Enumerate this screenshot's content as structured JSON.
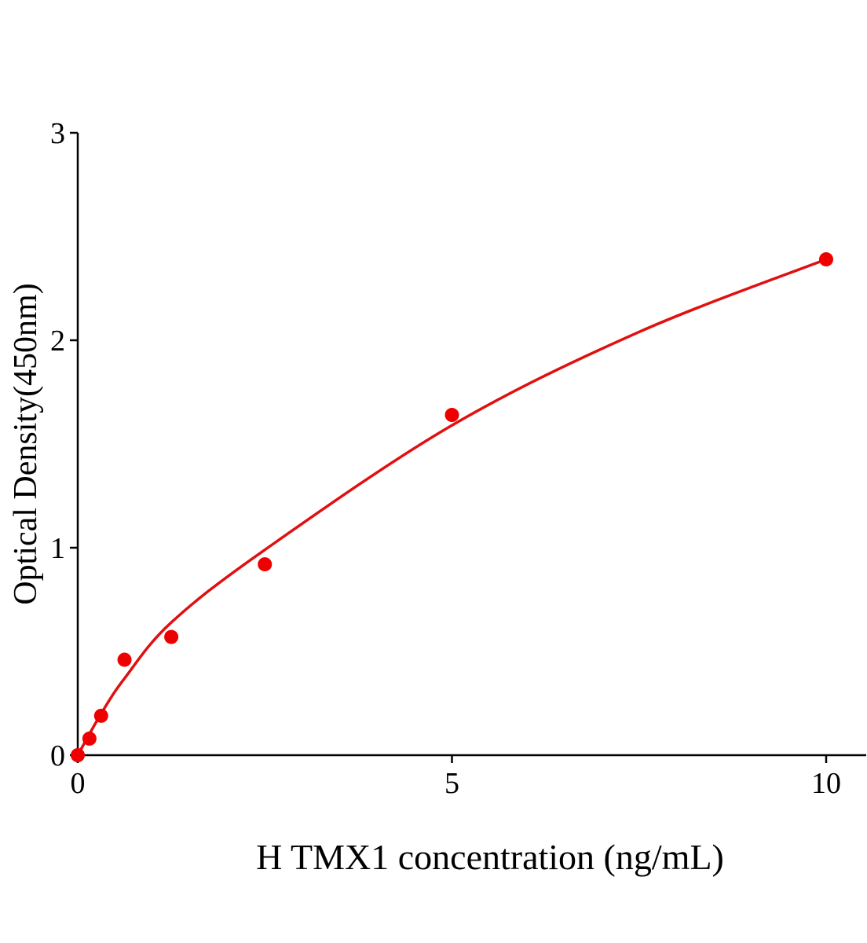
{
  "chart_data": {
    "type": "scatter",
    "title": "",
    "xlabel": "H TMX1 concentration (ng/mL)",
    "ylabel": "Optical Density(450nm)",
    "xlim": [
      0,
      10.5
    ],
    "ylim": [
      0,
      3
    ],
    "xticks": [
      0,
      5,
      10
    ],
    "yticks": [
      0,
      1,
      2,
      3
    ],
    "grid": false,
    "series": [
      {
        "x": [
          0,
          0.156,
          0.3125,
          0.625,
          1.25,
          2.5,
          5,
          10
        ],
        "y": [
          0.0,
          0.08,
          0.19,
          0.46,
          0.57,
          0.92,
          1.64,
          2.39
        ]
      }
    ],
    "fit_curve": {
      "x": [
        0,
        0.3125,
        0.625,
        1.25,
        2.5,
        5,
        7.5,
        10
      ],
      "y": [
        0,
        0.2,
        0.37,
        0.64,
        0.99,
        1.59,
        2.04,
        2.39
      ]
    },
    "colors": {
      "points": "#ee0000",
      "curve": "#e01010",
      "axis": "#000000"
    }
  }
}
